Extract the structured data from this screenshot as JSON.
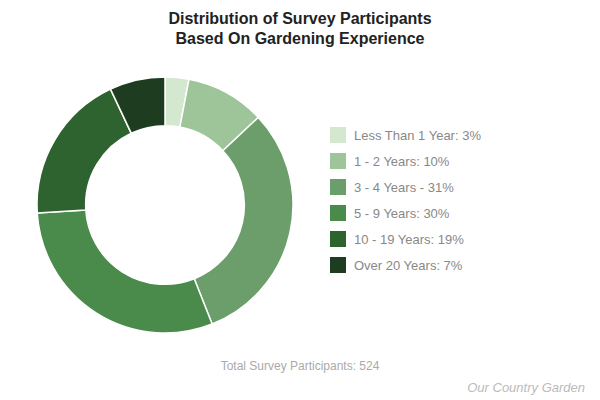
{
  "chart_data": {
    "type": "pie",
    "title": "Distribution of Survey Participants\nBased On Gardening Experience",
    "categories": [
      "Less Than 1 Year: 3%",
      "1 - 2 Years: 10%",
      "3 - 4 Years - 31%",
      "5 - 9 Years: 30%",
      "10 - 19 Years: 19%",
      "Over 20 Years: 7%"
    ],
    "values": [
      3,
      10,
      31,
      30,
      19,
      7
    ],
    "colors": [
      "#d4e8d0",
      "#9ec49a",
      "#6b9e6b",
      "#4a8a4a",
      "#2e6330",
      "#1e3d20"
    ],
    "legend": "right",
    "annotations": [
      "Total Survey Participants: 524",
      "Our Country Garden"
    ]
  }
}
